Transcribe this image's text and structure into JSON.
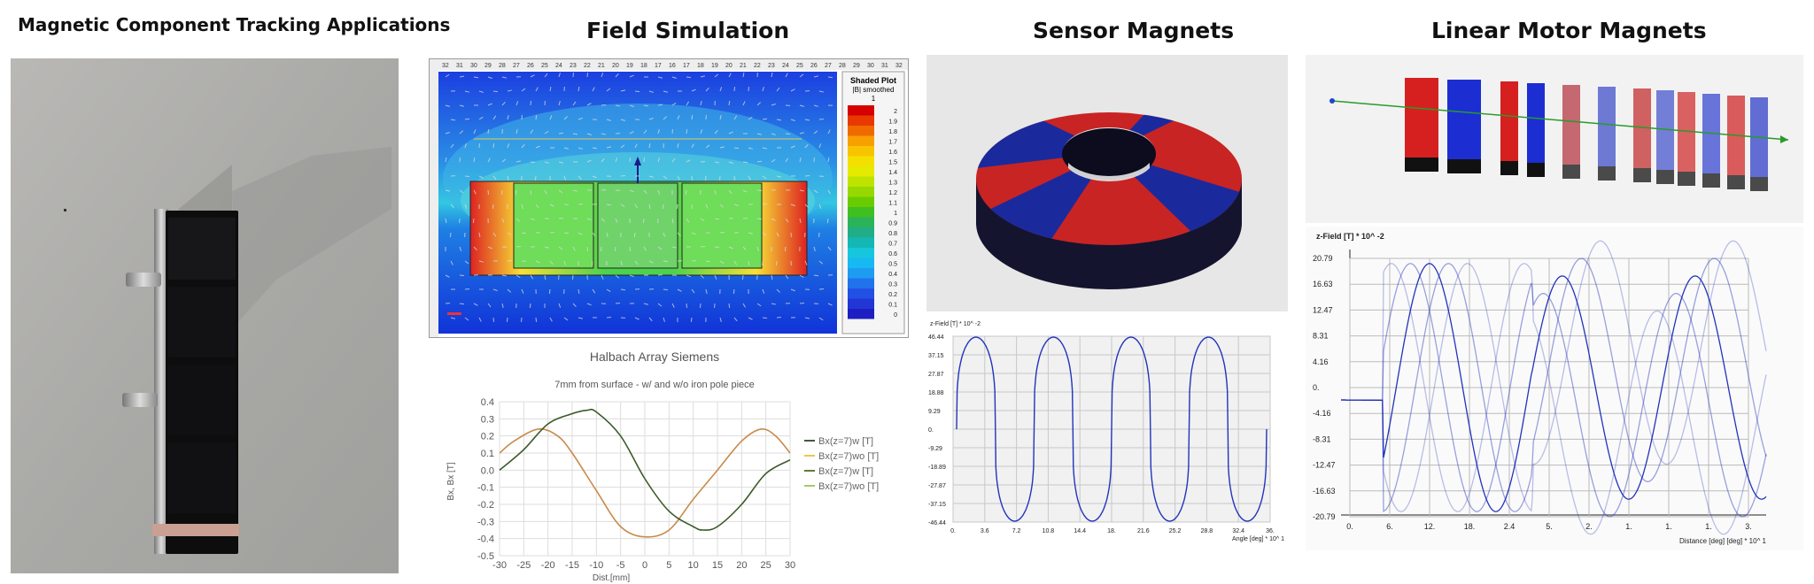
{
  "page_title": "Magnetic Component Tracking Applications",
  "sections": {
    "field_simulation": "Field Simulation",
    "sensor_magnets": "Sensor Magnets",
    "linear_motor_magnets": "Linear Motor Magnets"
  },
  "simulation": {
    "legend_title": "Shaded Plot",
    "legend_subtitle": "|B| smoothed",
    "legend_unit": "1",
    "legend_values": [
      "2",
      "1.9",
      "1.8",
      "1.7",
      "1.6",
      "1.5",
      "1.4",
      "1.3",
      "1.2",
      "1.1",
      "1",
      "0.9",
      "0.8",
      "0.7",
      "0.6",
      "0.5",
      "0.4",
      "0.3",
      "0.2",
      "0.1",
      "0"
    ]
  },
  "chart_data": [
    {
      "type": "line",
      "title": "Halbach Array Siemens",
      "subtitle": "7mm from surface - w/ and w/o iron pole piece",
      "xlabel": "Dist.[mm]",
      "ylabel": "Bx, Bx [T]",
      "xlim": [
        -30,
        30
      ],
      "ylim": [
        -0.5,
        0.4
      ],
      "xticks": [
        "-30",
        "-25",
        "-20",
        "-15",
        "-10",
        "-5",
        "0",
        "5",
        "10",
        "15",
        "20",
        "25",
        "30"
      ],
      "yticks": [
        "0.4",
        "0.3",
        "0.2",
        "0.1",
        "0.0",
        "-0.1",
        "-0.2",
        "-0.3",
        "-0.4",
        "-0.5"
      ],
      "grid": true,
      "legend_position": "right",
      "series": [
        {
          "name": "Bx(z=7)w [T]",
          "color": "#3d5a40",
          "x": [
            -30,
            -25,
            -20,
            -15,
            -12,
            -10,
            -5,
            0,
            5,
            10,
            12,
            15,
            20,
            25,
            30
          ],
          "y": [
            0.0,
            0.12,
            0.27,
            0.33,
            0.35,
            0.34,
            0.2,
            -0.05,
            -0.24,
            -0.33,
            -0.35,
            -0.33,
            -0.2,
            -0.02,
            0.06
          ]
        },
        {
          "name": "Bx(z=7)wo [T]",
          "color": "#e8c84a",
          "x": [
            -30,
            -27,
            -22,
            -18,
            -15,
            -10,
            -5,
            0,
            5,
            10,
            15,
            20,
            24,
            27,
            30
          ],
          "y": [
            0.1,
            0.17,
            0.24,
            0.2,
            0.1,
            -0.12,
            -0.33,
            -0.39,
            -0.35,
            -0.17,
            0.0,
            0.17,
            0.24,
            0.2,
            0.1
          ]
        },
        {
          "name": "Bx(z=7)w [T]",
          "color": "#5b7d3a",
          "x": [
            -30,
            -25,
            -20,
            -15,
            -12,
            -10,
            -5,
            0,
            5,
            10,
            12,
            15,
            20,
            25,
            30
          ],
          "y": [
            0.0,
            0.12,
            0.27,
            0.33,
            0.35,
            0.34,
            0.2,
            -0.05,
            -0.24,
            -0.33,
            -0.35,
            -0.33,
            -0.2,
            -0.02,
            0.06
          ]
        },
        {
          "name": "Bx(z=7)wo [T]",
          "color": "#a8c86a",
          "x": [
            -30,
            -27,
            -22,
            -18,
            -15,
            -10,
            -5,
            0,
            5,
            10,
            15,
            20,
            24,
            27,
            30
          ],
          "y": [
            0.1,
            0.17,
            0.24,
            0.2,
            0.1,
            -0.12,
            -0.33,
            -0.39,
            -0.35,
            -0.17,
            0.0,
            0.17,
            0.24,
            0.2,
            0.1
          ]
        }
      ]
    },
    {
      "type": "line",
      "title": "",
      "ylabel": "z-Field [T] * 10^ -2",
      "xlabel": "Angle [deg] * 10^ 1",
      "xticks": [
        "0.",
        "3.6",
        "7.2",
        "10.8",
        "14.4",
        "18.",
        "21.6",
        "25.2",
        "28.8",
        "32.4",
        "36."
      ],
      "yticks": [
        "46.44",
        "37.15",
        "27.87",
        "18.88",
        "9.29",
        "0.",
        "-9.29",
        "-18.89",
        "-27.87",
        "-37.15",
        "-46.44"
      ],
      "xlim": [
        0,
        36
      ],
      "ylim": [
        -46.44,
        46.44
      ],
      "grid": true,
      "series": [
        {
          "color": "#2233bb",
          "shape": "square-like wave, 4 periods",
          "periods": 4,
          "amplitude": 46.44
        }
      ]
    },
    {
      "type": "line",
      "title": "z-Field [T] * 10^ -2",
      "ylabel": "z-Field [T] * 10^ -2",
      "xlabel": "Distance [deg] [deg] * 10^ 1",
      "xticks": [
        "0.",
        "6.",
        "12.",
        "18.",
        "2.4",
        "5.",
        "2.",
        "1.",
        "1.",
        "1.",
        "3."
      ],
      "yticks": [
        "20.79",
        "16.63",
        "12.47",
        "8.31",
        "4.16",
        "0.",
        "-4.16",
        "-8.31",
        "-12.47",
        "-16.63",
        "-20.79"
      ],
      "ylim": [
        -20.79,
        20.79
      ],
      "grid": true,
      "series": [
        {
          "color": "#2233bb",
          "shape": "damped oscillation traces",
          "amplitude": 20.79
        }
      ]
    }
  ]
}
